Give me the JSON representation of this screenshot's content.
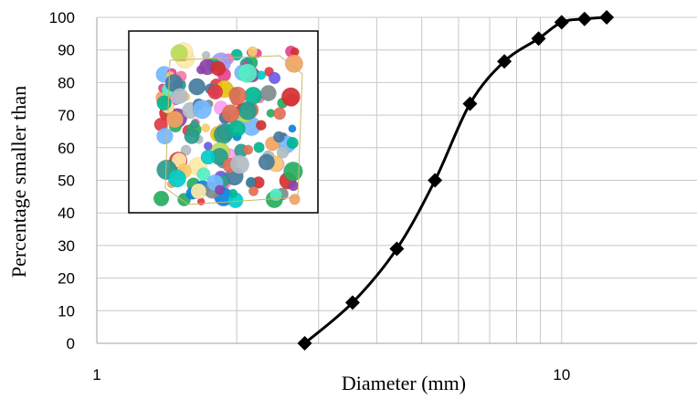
{
  "chart_data": {
    "type": "line",
    "title": "",
    "xlabel": "Diameter (mm)",
    "ylabel": "Percentage smaller than",
    "x_scale": "log",
    "xlim": [
      1,
      20
    ],
    "ylim": [
      0,
      100
    ],
    "x_ticks": [
      1,
      10
    ],
    "x_tick_labels": [
      "1",
      "10"
    ],
    "y_ticks": [
      0,
      10,
      20,
      30,
      40,
      50,
      60,
      70,
      80,
      90,
      100
    ],
    "y_tick_labels": [
      "0",
      "10",
      "20",
      "30",
      "40",
      "50",
      "60",
      "70",
      "80",
      "90",
      "100"
    ],
    "grid": true,
    "legend": "none",
    "series": [
      {
        "marker": "diamond",
        "color": "#000000",
        "smooth": true,
        "x": [
          2.8,
          3.55,
          4.42,
          5.34,
          6.35,
          7.53,
          8.92,
          10.0,
          11.2,
          12.5
        ],
        "y": [
          0,
          12.5,
          29,
          50,
          73.5,
          86.5,
          93.5,
          98.5,
          99.5,
          100
        ]
      }
    ],
    "inset": {
      "content": "3D packing of colored spheres inside a cube",
      "border_color": "#000000"
    },
    "colors": {
      "grid": "#c8c8c8",
      "axis": "#a0a0a0",
      "line": "#000000"
    }
  }
}
